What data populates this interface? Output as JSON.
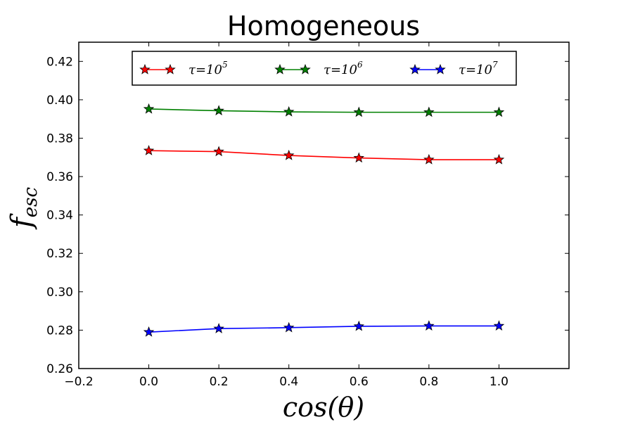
{
  "chart_data": {
    "type": "line",
    "title": "Homogeneous",
    "xlabel": "cos(θ)",
    "ylabel": "f_esc",
    "xlim": [
      -0.2,
      1.2
    ],
    "ylim": [
      0.26,
      0.43
    ],
    "xticks": [
      "−0.2",
      "0.0",
      "0.2",
      "0.4",
      "0.6",
      "0.8",
      "1.0"
    ],
    "yticks": [
      "0.26",
      "0.28",
      "0.30",
      "0.32",
      "0.34",
      "0.36",
      "0.38",
      "0.40",
      "0.42"
    ],
    "grid": false,
    "legend_position": "top",
    "x": [
      0.0,
      0.2,
      0.4,
      0.6,
      0.8,
      1.0
    ],
    "series": [
      {
        "name": "τ=10^5",
        "tau_base": "τ=10",
        "tau_exp": "5",
        "color": "#ff0000",
        "marker": "star",
        "values": [
          0.3735,
          0.373,
          0.371,
          0.3697,
          0.3688,
          0.3688
        ]
      },
      {
        "name": "τ=10^6",
        "tau_base": "τ=10",
        "tau_exp": "6",
        "color": "#008000",
        "marker": "star",
        "values": [
          0.3952,
          0.3943,
          0.3937,
          0.3935,
          0.3935,
          0.3935
        ]
      },
      {
        "name": "τ=10^7",
        "tau_base": "τ=10",
        "tau_exp": "7",
        "color": "#0000ff",
        "marker": "star",
        "values": [
          0.279,
          0.2808,
          0.2813,
          0.282,
          0.2822,
          0.2822
        ]
      }
    ]
  }
}
